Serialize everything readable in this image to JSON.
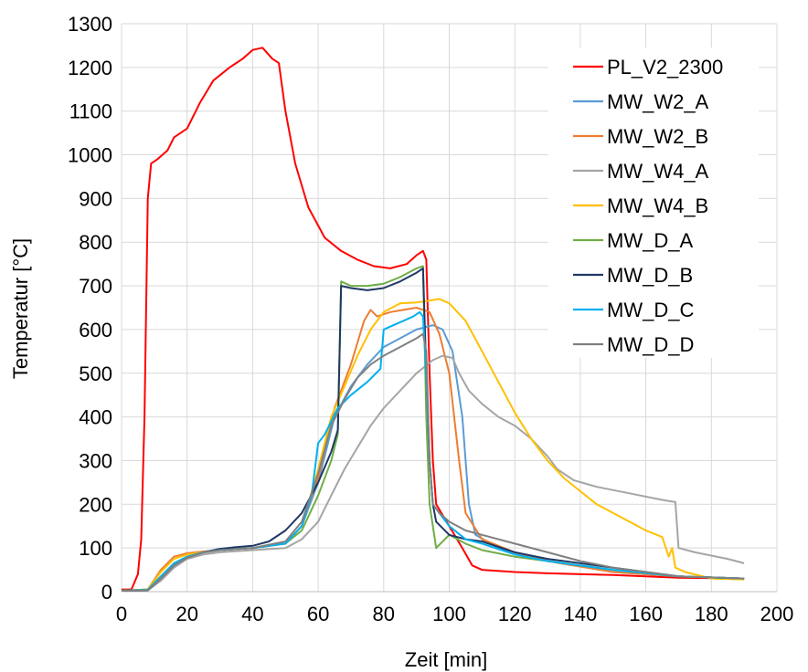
{
  "chart_data": {
    "type": "line",
    "xlabel": "Zeit [min]",
    "ylabel": "Temperatur [°C]",
    "xlim": [
      0,
      200
    ],
    "ylim": [
      0,
      1300
    ],
    "xticks": [
      0,
      20,
      40,
      60,
      80,
      100,
      120,
      140,
      160,
      180,
      200
    ],
    "yticks": [
      0,
      100,
      200,
      300,
      400,
      500,
      600,
      700,
      800,
      900,
      1000,
      1100,
      1200,
      1300
    ],
    "grid": true,
    "legend_position": "top-right",
    "series": [
      {
        "name": "PL_V2_2300",
        "color": "#ff0000",
        "points": [
          [
            0,
            5
          ],
          [
            3,
            5
          ],
          [
            5,
            40
          ],
          [
            6,
            120
          ],
          [
            7,
            400
          ],
          [
            8,
            900
          ],
          [
            9,
            980
          ],
          [
            11,
            990
          ],
          [
            14,
            1010
          ],
          [
            16,
            1040
          ],
          [
            20,
            1060
          ],
          [
            24,
            1120
          ],
          [
            28,
            1170
          ],
          [
            33,
            1200
          ],
          [
            37,
            1220
          ],
          [
            40,
            1240
          ],
          [
            43,
            1245
          ],
          [
            46,
            1220
          ],
          [
            48,
            1210
          ],
          [
            50,
            1100
          ],
          [
            53,
            980
          ],
          [
            57,
            880
          ],
          [
            62,
            810
          ],
          [
            67,
            780
          ],
          [
            72,
            760
          ],
          [
            77,
            745
          ],
          [
            82,
            740
          ],
          [
            87,
            750
          ],
          [
            90,
            770
          ],
          [
            92,
            780
          ],
          [
            93,
            760
          ],
          [
            94,
            500
          ],
          [
            95,
            300
          ],
          [
            96,
            200
          ],
          [
            100,
            150
          ],
          [
            104,
            100
          ],
          [
            107,
            60
          ],
          [
            110,
            50
          ],
          [
            120,
            45
          ],
          [
            130,
            42
          ],
          [
            150,
            38
          ],
          [
            170,
            32
          ],
          [
            190,
            30
          ]
        ]
      },
      {
        "name": "MW_W2_A",
        "color": "#5b9bd5",
        "points": [
          [
            0,
            2
          ],
          [
            8,
            4
          ],
          [
            12,
            30
          ],
          [
            16,
            60
          ],
          [
            20,
            80
          ],
          [
            25,
            90
          ],
          [
            30,
            95
          ],
          [
            40,
            100
          ],
          [
            50,
            110
          ],
          [
            55,
            150
          ],
          [
            60,
            250
          ],
          [
            65,
            400
          ],
          [
            70,
            470
          ],
          [
            75,
            520
          ],
          [
            80,
            560
          ],
          [
            85,
            580
          ],
          [
            90,
            600
          ],
          [
            95,
            610
          ],
          [
            98,
            600
          ],
          [
            101,
            550
          ],
          [
            104,
            400
          ],
          [
            106,
            200
          ],
          [
            108,
            130
          ],
          [
            115,
            100
          ],
          [
            130,
            70
          ],
          [
            150,
            45
          ],
          [
            170,
            35
          ],
          [
            190,
            30
          ]
        ]
      },
      {
        "name": "MW_W2_B",
        "color": "#ed7d31",
        "points": [
          [
            0,
            2
          ],
          [
            8,
            5
          ],
          [
            12,
            50
          ],
          [
            16,
            80
          ],
          [
            20,
            88
          ],
          [
            25,
            92
          ],
          [
            30,
            95
          ],
          [
            40,
            100
          ],
          [
            50,
            110
          ],
          [
            55,
            150
          ],
          [
            60,
            260
          ],
          [
            65,
            420
          ],
          [
            70,
            520
          ],
          [
            74,
            620
          ],
          [
            76,
            645
          ],
          [
            78,
            630
          ],
          [
            82,
            640
          ],
          [
            86,
            645
          ],
          [
            90,
            650
          ],
          [
            94,
            640
          ],
          [
            97,
            590
          ],
          [
            100,
            500
          ],
          [
            103,
            300
          ],
          [
            105,
            180
          ],
          [
            110,
            120
          ],
          [
            120,
            90
          ],
          [
            130,
            70
          ],
          [
            150,
            45
          ],
          [
            170,
            35
          ],
          [
            190,
            30
          ]
        ]
      },
      {
        "name": "MW_W4_A",
        "color": "#a5a5a5",
        "points": [
          [
            0,
            2
          ],
          [
            8,
            3
          ],
          [
            12,
            25
          ],
          [
            16,
            55
          ],
          [
            20,
            75
          ],
          [
            25,
            85
          ],
          [
            30,
            90
          ],
          [
            40,
            95
          ],
          [
            50,
            100
          ],
          [
            55,
            120
          ],
          [
            60,
            160
          ],
          [
            64,
            220
          ],
          [
            68,
            280
          ],
          [
            72,
            330
          ],
          [
            76,
            380
          ],
          [
            80,
            420
          ],
          [
            85,
            460
          ],
          [
            90,
            500
          ],
          [
            95,
            530
          ],
          [
            98,
            540
          ],
          [
            101,
            535
          ],
          [
            103,
            500
          ],
          [
            106,
            460
          ],
          [
            110,
            430
          ],
          [
            115,
            400
          ],
          [
            120,
            380
          ],
          [
            125,
            350
          ],
          [
            130,
            310
          ],
          [
            133,
            280
          ],
          [
            138,
            255
          ],
          [
            145,
            240
          ],
          [
            155,
            225
          ],
          [
            165,
            210
          ],
          [
            169,
            205
          ],
          [
            170,
            100
          ],
          [
            175,
            90
          ],
          [
            185,
            75
          ],
          [
            190,
            65
          ]
        ]
      },
      {
        "name": "MW_W4_B",
        "color": "#ffc000",
        "points": [
          [
            0,
            2
          ],
          [
            8,
            5
          ],
          [
            12,
            45
          ],
          [
            16,
            75
          ],
          [
            20,
            85
          ],
          [
            25,
            90
          ],
          [
            30,
            95
          ],
          [
            40,
            100
          ],
          [
            50,
            110
          ],
          [
            55,
            150
          ],
          [
            60,
            280
          ],
          [
            64,
            400
          ],
          [
            68,
            470
          ],
          [
            72,
            540
          ],
          [
            76,
            600
          ],
          [
            80,
            640
          ],
          [
            85,
            660
          ],
          [
            90,
            662
          ],
          [
            93,
            665
          ],
          [
            97,
            670
          ],
          [
            100,
            660
          ],
          [
            105,
            620
          ],
          [
            110,
            550
          ],
          [
            115,
            480
          ],
          [
            120,
            410
          ],
          [
            125,
            350
          ],
          [
            130,
            300
          ],
          [
            135,
            260
          ],
          [
            140,
            230
          ],
          [
            145,
            200
          ],
          [
            150,
            180
          ],
          [
            155,
            160
          ],
          [
            160,
            140
          ],
          [
            165,
            125
          ],
          [
            167,
            80
          ],
          [
            168,
            100
          ],
          [
            169,
            55
          ],
          [
            172,
            45
          ],
          [
            180,
            30
          ],
          [
            190,
            28
          ]
        ]
      },
      {
        "name": "MW_D_A",
        "color": "#70ad47",
        "points": [
          [
            0,
            2
          ],
          [
            8,
            5
          ],
          [
            12,
            35
          ],
          [
            16,
            65
          ],
          [
            20,
            80
          ],
          [
            25,
            90
          ],
          [
            30,
            95
          ],
          [
            40,
            100
          ],
          [
            50,
            110
          ],
          [
            55,
            140
          ],
          [
            60,
            220
          ],
          [
            64,
            300
          ],
          [
            66,
            360
          ],
          [
            67,
            710
          ],
          [
            70,
            700
          ],
          [
            75,
            700
          ],
          [
            80,
            705
          ],
          [
            85,
            720
          ],
          [
            90,
            740
          ],
          [
            92,
            745
          ],
          [
            93,
            400
          ],
          [
            94,
            200
          ],
          [
            95,
            150
          ],
          [
            96,
            100
          ],
          [
            100,
            130
          ],
          [
            105,
            110
          ],
          [
            110,
            95
          ],
          [
            120,
            80
          ],
          [
            130,
            70
          ],
          [
            150,
            50
          ],
          [
            170,
            35
          ],
          [
            190,
            30
          ]
        ]
      },
      {
        "name": "MW_D_B",
        "color": "#1f3864",
        "points": [
          [
            0,
            2
          ],
          [
            8,
            3
          ],
          [
            12,
            30
          ],
          [
            16,
            60
          ],
          [
            20,
            78
          ],
          [
            25,
            90
          ],
          [
            30,
            98
          ],
          [
            35,
            102
          ],
          [
            40,
            105
          ],
          [
            45,
            115
          ],
          [
            50,
            140
          ],
          [
            55,
            180
          ],
          [
            60,
            250
          ],
          [
            64,
            320
          ],
          [
            66,
            370
          ],
          [
            67,
            700
          ],
          [
            70,
            695
          ],
          [
            75,
            690
          ],
          [
            80,
            695
          ],
          [
            85,
            710
          ],
          [
            90,
            730
          ],
          [
            92,
            740
          ],
          [
            93,
            500
          ],
          [
            94,
            300
          ],
          [
            95,
            200
          ],
          [
            96,
            160
          ],
          [
            100,
            130
          ],
          [
            105,
            120
          ],
          [
            110,
            115
          ],
          [
            120,
            90
          ],
          [
            130,
            75
          ],
          [
            150,
            55
          ],
          [
            170,
            35
          ],
          [
            190,
            30
          ]
        ]
      },
      {
        "name": "MW_D_C",
        "color": "#00b0f0",
        "points": [
          [
            0,
            2
          ],
          [
            8,
            4
          ],
          [
            12,
            35
          ],
          [
            16,
            65
          ],
          [
            20,
            80
          ],
          [
            25,
            90
          ],
          [
            30,
            95
          ],
          [
            40,
            100
          ],
          [
            50,
            110
          ],
          [
            55,
            150
          ],
          [
            58,
            220
          ],
          [
            60,
            340
          ],
          [
            62,
            360
          ],
          [
            66,
            420
          ],
          [
            70,
            450
          ],
          [
            75,
            480
          ],
          [
            79,
            510
          ],
          [
            80,
            600
          ],
          [
            83,
            610
          ],
          [
            86,
            620
          ],
          [
            89,
            630
          ],
          [
            91,
            640
          ],
          [
            92,
            630
          ],
          [
            93,
            500
          ],
          [
            94,
            300
          ],
          [
            95,
            200
          ],
          [
            97,
            180
          ],
          [
            100,
            150
          ],
          [
            105,
            120
          ],
          [
            110,
            110
          ],
          [
            120,
            85
          ],
          [
            130,
            70
          ],
          [
            150,
            50
          ],
          [
            170,
            35
          ],
          [
            190,
            30
          ]
        ]
      },
      {
        "name": "MW_D_D",
        "color": "#808080",
        "points": [
          [
            0,
            2
          ],
          [
            8,
            3
          ],
          [
            12,
            30
          ],
          [
            16,
            60
          ],
          [
            20,
            78
          ],
          [
            25,
            90
          ],
          [
            30,
            95
          ],
          [
            40,
            100
          ],
          [
            50,
            115
          ],
          [
            55,
            160
          ],
          [
            60,
            270
          ],
          [
            64,
            380
          ],
          [
            68,
            440
          ],
          [
            72,
            490
          ],
          [
            76,
            520
          ],
          [
            80,
            540
          ],
          [
            85,
            560
          ],
          [
            90,
            580
          ],
          [
            92,
            590
          ],
          [
            93,
            550
          ],
          [
            94,
            300
          ],
          [
            95,
            200
          ],
          [
            97,
            180
          ],
          [
            100,
            160
          ],
          [
            105,
            140
          ],
          [
            110,
            130
          ],
          [
            120,
            110
          ],
          [
            130,
            90
          ],
          [
            140,
            70
          ],
          [
            150,
            55
          ],
          [
            170,
            35
          ],
          [
            190,
            30
          ]
        ]
      }
    ]
  }
}
